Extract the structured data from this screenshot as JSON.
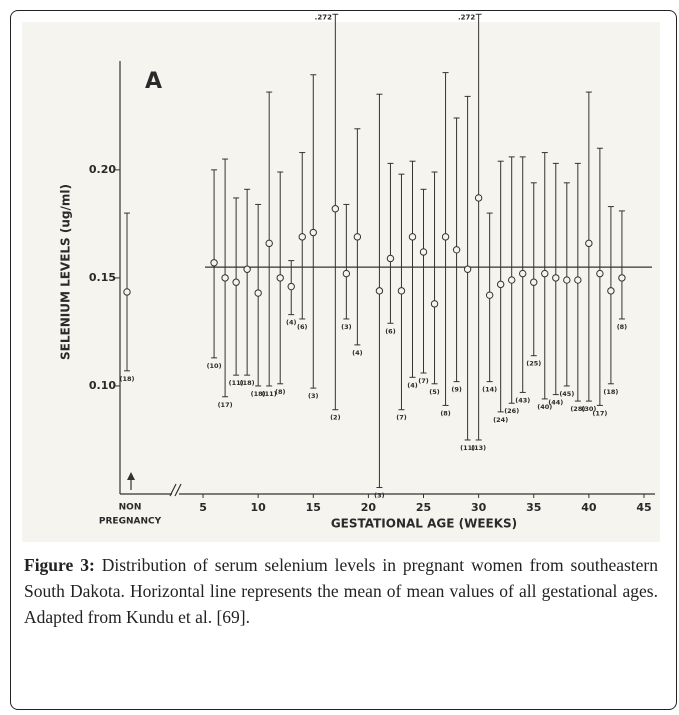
{
  "chart_data": {
    "type": "errorbar",
    "panel_label": "A",
    "ylabel": "SELENIUM LEVELS (ug/ml)",
    "xlabel": "GESTATIONAL AGE (WEEKS)",
    "xlim": [
      3,
      46
    ],
    "xticks": [
      5,
      10,
      15,
      20,
      25,
      30,
      35,
      40,
      45
    ],
    "ylim": [
      0.05,
      0.255
    ],
    "yticks": [
      {
        "value": 0.1,
        "label": "0.10"
      },
      {
        "value": 0.15,
        "label": "0.15"
      },
      {
        "value": 0.2,
        "label": "0.20"
      }
    ],
    "x": [
      6,
      7,
      8,
      9,
      10,
      11,
      12,
      13,
      14,
      15,
      17,
      18,
      19,
      21,
      22,
      23,
      24,
      25,
      26,
      27,
      28,
      29,
      30,
      31,
      32,
      33,
      34,
      35,
      36,
      37,
      38,
      39,
      40,
      41,
      42,
      43
    ],
    "mean": [
      0.157,
      0.15,
      0.148,
      0.154,
      0.143,
      0.166,
      0.15,
      0.146,
      0.169,
      0.171,
      0.182,
      0.152,
      0.169,
      0.144,
      0.159,
      0.144,
      0.169,
      0.162,
      0.138,
      0.169,
      0.163,
      0.154,
      0.187,
      0.142,
      0.147,
      0.149,
      0.152,
      0.148,
      0.152,
      0.15,
      0.149,
      0.149,
      0.166,
      0.152,
      0.144,
      0.15
    ],
    "lower": [
      0.113,
      0.095,
      0.105,
      0.105,
      0.1,
      0.1,
      0.101,
      0.133,
      0.131,
      0.099,
      0.089,
      0.131,
      0.119,
      0.053,
      0.129,
      0.089,
      0.104,
      0.106,
      0.101,
      0.091,
      0.102,
      0.075,
      0.075,
      0.102,
      0.088,
      0.092,
      0.097,
      0.114,
      0.094,
      0.096,
      0.1,
      0.093,
      0.093,
      0.091,
      0.101,
      0.131
    ],
    "upper": [
      0.2,
      0.205,
      0.187,
      0.191,
      0.184,
      0.236,
      0.199,
      0.158,
      0.208,
      0.244,
      0.272,
      0.184,
      0.219,
      0.235,
      0.203,
      0.198,
      0.204,
      0.191,
      0.199,
      0.245,
      0.224,
      0.234,
      0.272,
      0.18,
      0.204,
      0.206,
      0.206,
      0.194,
      0.208,
      0.203,
      0.194,
      0.203,
      0.236,
      0.21,
      0.183,
      0.181
    ],
    "upper_labels": [
      null,
      null,
      null,
      null,
      null,
      null,
      null,
      null,
      null,
      null,
      ".272",
      null,
      null,
      null,
      null,
      null,
      null,
      null,
      null,
      null,
      null,
      null,
      ".272",
      null,
      null,
      null,
      null,
      null,
      null,
      null,
      null,
      null,
      null,
      null,
      null,
      null
    ],
    "n_labels": [
      "(10)",
      "(17)",
      "(11)",
      "(18)",
      "(18)",
      "(11)",
      "(8)",
      "(4)",
      "(6)",
      "(3)",
      "(2)",
      "(3)",
      "(4)",
      "(3)",
      "(6)",
      "(7)",
      "(4)",
      "(7)",
      "(5)",
      "(8)",
      "(9)",
      "(11)",
      "(13)",
      "(14)",
      "(24)",
      "(26)",
      "(43)",
      "(25)",
      "(40)",
      "(44)",
      "(45)",
      "(28)",
      "(30)",
      "(17)",
      "(18)",
      "(8)"
    ],
    "mean_line": 0.155,
    "reference": {
      "label": [
        "NON",
        "PREGNANCY"
      ],
      "mean": 0.1435,
      "lower": 0.107,
      "upper": 0.18,
      "n_label": "(18)"
    }
  },
  "caption": {
    "label": "Figure 3:",
    "text": "Distribution of serum selenium levels in pregnant women from southeastern South Dakota. Horizontal line represents the mean of mean values of all gestational ages. Adapted from Kundu et al. [69]."
  }
}
